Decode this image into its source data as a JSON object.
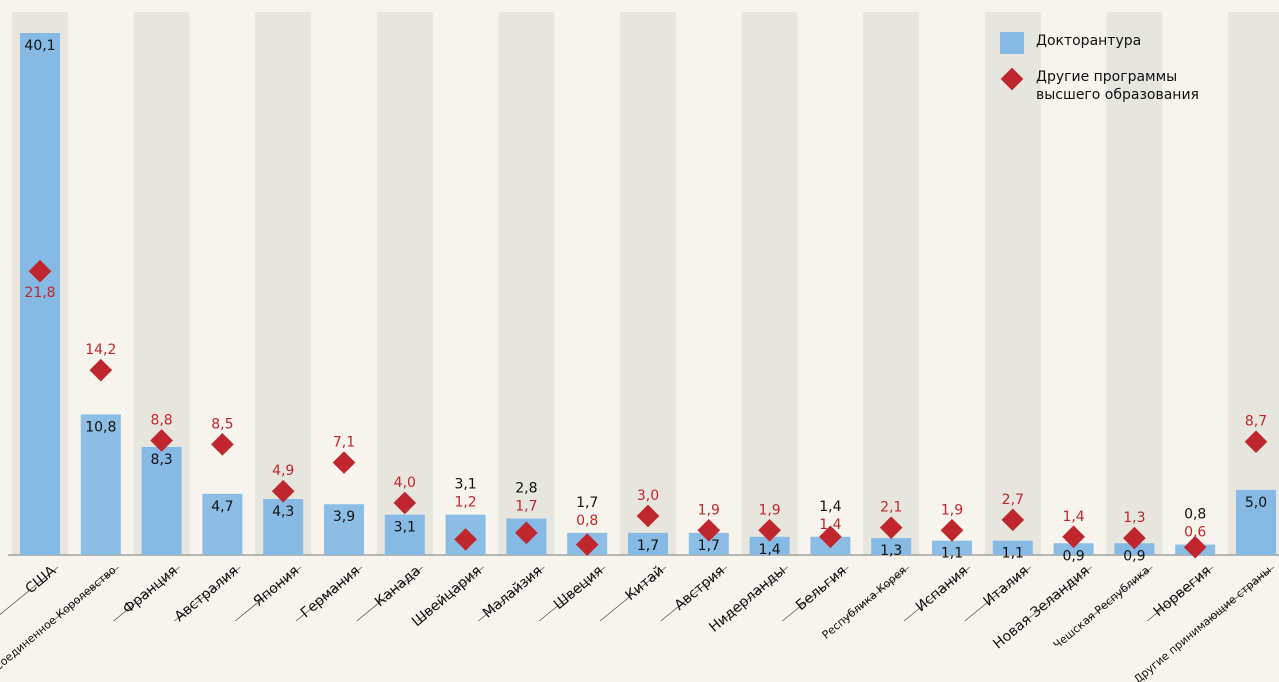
{
  "chart_data": {
    "type": "bar",
    "categories": [
      "США",
      "Соединенное Королевство",
      "Франция",
      "Австралия",
      "Япония",
      "Германия",
      "Канада",
      "Швейцария",
      "Малайзия",
      "Швеция",
      "Китай",
      "Австрия",
      "Нидерланды",
      "Бельгия",
      "Республика Корея",
      "Испания",
      "Италия",
      "Новая Зеландия",
      "Чешская Республика",
      "Норвегия",
      "Другие принимающие страны"
    ],
    "series": [
      {
        "name": "Докторантура",
        "color": "#86b9e4",
        "values": [
          40.1,
          10.8,
          8.3,
          4.7,
          4.3,
          3.9,
          3.1,
          3.1,
          2.8,
          1.7,
          1.7,
          1.7,
          1.4,
          1.4,
          1.3,
          1.1,
          1.1,
          0.9,
          0.9,
          0.8,
          5.0
        ],
        "value_labels": [
          "40,1",
          "10,8",
          "8,3",
          "4,7",
          "4,3",
          "3,9",
          "3,1",
          "3,1",
          "2,8",
          "1,7",
          "1,7",
          "1,7",
          "1,4",
          "1,4",
          "1,3",
          "1,1",
          "1,1",
          "0,9",
          "0,9",
          "0,8",
          "5,0"
        ]
      },
      {
        "name": "Другие программы высшего образования",
        "color": "#c0262d",
        "values": [
          21.8,
          14.2,
          8.8,
          8.5,
          4.9,
          7.1,
          4.0,
          1.2,
          1.7,
          0.8,
          3.0,
          1.9,
          1.9,
          1.4,
          2.1,
          1.9,
          2.7,
          1.4,
          1.3,
          0.6,
          8.7
        ],
        "value_labels": [
          "21,8",
          "14,2",
          "8,8",
          "8,5",
          "4,9",
          "7,1",
          "4,0",
          "1,2",
          "1,7",
          "0,8",
          "3,0",
          "1,9",
          "1,9",
          "1,4",
          "2,1",
          "1,9",
          "2,7",
          "1,4",
          "1,3",
          "0,6",
          "8,7"
        ]
      }
    ],
    "ylim": [
      0,
      40.1
    ]
  }
}
